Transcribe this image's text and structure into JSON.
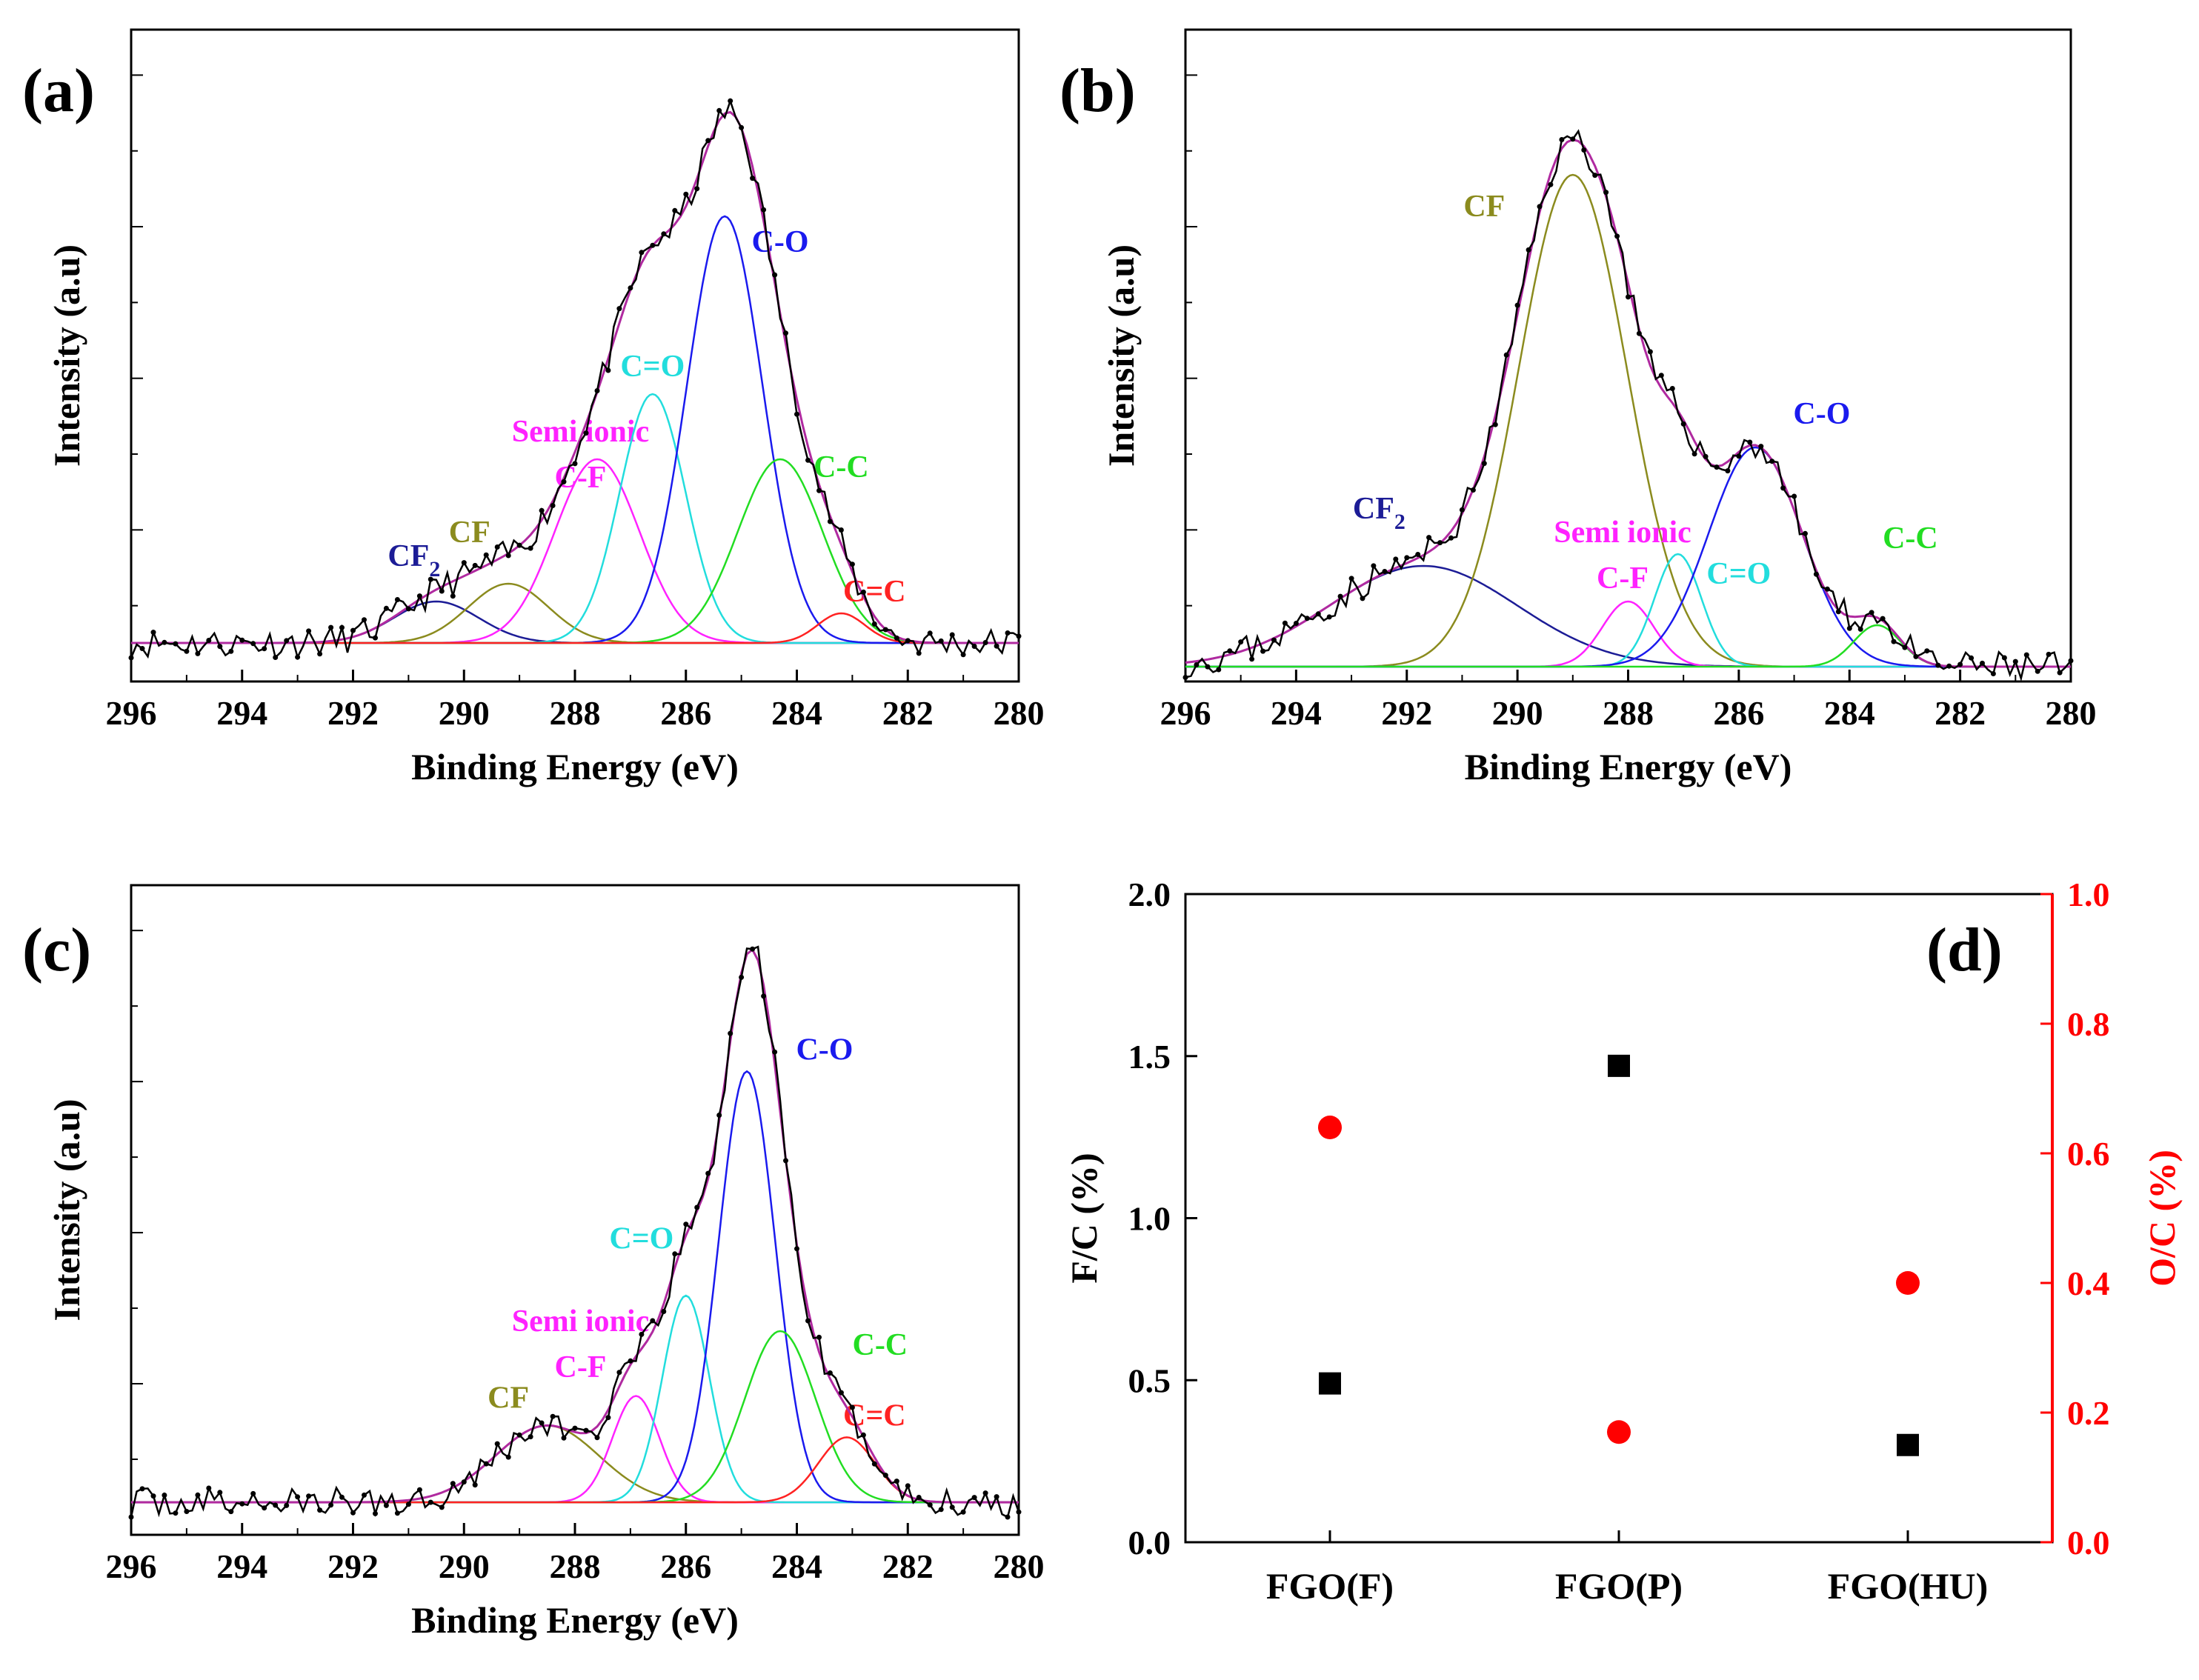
{
  "chart_data": [
    {
      "type": "line",
      "panel": "(a)",
      "xlabel": "Binding Energy (eV)",
      "ylabel": "Intensity (a.u)",
      "xlim": [
        296,
        280
      ],
      "ylim": [
        0,
        1
      ],
      "xticks": [
        296,
        294,
        292,
        290,
        288,
        286,
        284,
        282,
        280
      ],
      "baseline": 0.04,
      "noise_seed": 11,
      "peaks": [
        {
          "label": "CF2",
          "center": 290.5,
          "height": 0.07,
          "fwhm": 1.8,
          "color": "#1c1c96",
          "label_pos": [
            290.9,
            0.17
          ]
        },
        {
          "label": "CF",
          "center": 289.2,
          "height": 0.1,
          "fwhm": 1.7,
          "color": "#8b8b1e",
          "label_pos": [
            289.9,
            0.21
          ]
        },
        {
          "label": "Semi ionic C-F",
          "center": 287.6,
          "height": 0.31,
          "fwhm": 1.8,
          "color": "#ff22ff",
          "label_pos": [
            287.9,
            0.38
          ]
        },
        {
          "label": "C=O",
          "center": 286.6,
          "height": 0.42,
          "fwhm": 1.4,
          "color": "#22dddd",
          "label_pos": [
            286.6,
            0.49
          ]
        },
        {
          "label": "C-O",
          "center": 285.3,
          "height": 0.72,
          "fwhm": 1.6,
          "color": "#1a1aee",
          "label_pos": [
            284.3,
            0.7
          ]
        },
        {
          "label": "C-C",
          "center": 284.3,
          "height": 0.31,
          "fwhm": 1.8,
          "color": "#22dd22",
          "label_pos": [
            283.2,
            0.32
          ]
        },
        {
          "label": "C=C",
          "center": 283.2,
          "height": 0.05,
          "fwhm": 1.0,
          "color": "#ff2222",
          "label_pos": [
            282.6,
            0.11
          ]
        }
      ],
      "peak_labels": [
        {
          "main": "CF",
          "sub": "2"
        },
        {
          "main": "CF",
          "sub": ""
        },
        {
          "main": "Semi ionic",
          "line2": "C-F"
        },
        {
          "main": "C=O",
          "sub": ""
        },
        {
          "main": "C-O",
          "sub": ""
        },
        {
          "main": "C-C",
          "sub": ""
        },
        {
          "main": "C=C",
          "sub": ""
        }
      ]
    },
    {
      "type": "line",
      "panel": "(b)",
      "xlabel": "Binding Energy (eV)",
      "ylabel": "Intensity (a.u)",
      "xlim": [
        296,
        280
      ],
      "ylim": [
        0,
        1
      ],
      "xticks": [
        296,
        294,
        292,
        290,
        288,
        286,
        284,
        282,
        280
      ],
      "baseline": 0.0,
      "noise_seed": 23,
      "peaks": [
        {
          "label": "CF2",
          "center": 291.7,
          "height": 0.17,
          "fwhm": 4.0,
          "color": "#1c1c96",
          "label_pos": [
            292.5,
            0.25
          ]
        },
        {
          "label": "CF",
          "center": 289.0,
          "height": 0.83,
          "fwhm": 2.3,
          "color": "#8b8b1e",
          "label_pos": [
            290.6,
            0.76
          ]
        },
        {
          "label": "Semi ionic C-F",
          "center": 288.0,
          "height": 0.11,
          "fwhm": 1.1,
          "color": "#ff22ff",
          "label_pos": [
            288.1,
            0.21
          ]
        },
        {
          "label": "C=O",
          "center": 287.1,
          "height": 0.19,
          "fwhm": 1.0,
          "color": "#22dddd",
          "label_pos": [
            286.0,
            0.14
          ]
        },
        {
          "label": "C-O",
          "center": 285.7,
          "height": 0.37,
          "fwhm": 2.0,
          "color": "#1a1aee",
          "label_pos": [
            284.5,
            0.41
          ]
        },
        {
          "label": "C-C",
          "center": 283.5,
          "height": 0.07,
          "fwhm": 1.0,
          "color": "#22dd22",
          "label_pos": [
            282.9,
            0.2
          ]
        }
      ],
      "peak_labels": [
        {
          "main": "CF",
          "sub": "2"
        },
        {
          "main": "CF",
          "sub": ""
        },
        {
          "main": "Semi ionic",
          "line2": "C-F"
        },
        {
          "main": "C=O",
          "sub": ""
        },
        {
          "main": "C-O",
          "sub": ""
        },
        {
          "main": "C-C",
          "sub": ""
        }
      ]
    },
    {
      "type": "line",
      "panel": "(c)",
      "xlabel": "Binding Energy (eV)",
      "ylabel": "Intensity (a.u)",
      "xlim": [
        296,
        280
      ],
      "ylim": [
        0,
        1
      ],
      "xticks": [
        296,
        294,
        292,
        290,
        288,
        286,
        284,
        282,
        280
      ],
      "baseline": 0.03,
      "noise_seed": 37,
      "peaks": [
        {
          "label": "CF",
          "center": 288.5,
          "height": 0.13,
          "fwhm": 2.2,
          "color": "#8b8b1e",
          "label_pos": [
            289.2,
            0.19
          ]
        },
        {
          "label": "Semi ionic C-F",
          "center": 286.9,
          "height": 0.18,
          "fwhm": 1.0,
          "color": "#ff22ff",
          "label_pos": [
            287.9,
            0.32
          ]
        },
        {
          "label": "C=O",
          "center": 286.0,
          "height": 0.35,
          "fwhm": 1.0,
          "color": "#22dddd",
          "label_pos": [
            286.8,
            0.46
          ]
        },
        {
          "label": "C-O",
          "center": 284.9,
          "height": 0.73,
          "fwhm": 1.2,
          "color": "#1a1aee",
          "label_pos": [
            283.5,
            0.78
          ]
        },
        {
          "label": "C-C",
          "center": 284.3,
          "height": 0.29,
          "fwhm": 1.5,
          "color": "#22dd22",
          "label_pos": [
            282.5,
            0.28
          ]
        },
        {
          "label": "C=C",
          "center": 283.1,
          "height": 0.11,
          "fwhm": 1.2,
          "color": "#ff2222",
          "label_pos": [
            282.6,
            0.16
          ]
        }
      ],
      "peak_labels": [
        {
          "main": "CF",
          "sub": ""
        },
        {
          "main": "Semi ionic",
          "line2": "C-F"
        },
        {
          "main": "C=O",
          "sub": ""
        },
        {
          "main": "C-O",
          "sub": ""
        },
        {
          "main": "C-C",
          "sub": ""
        },
        {
          "main": "C=C",
          "sub": ""
        }
      ]
    },
    {
      "type": "scatter",
      "panel": "(d)",
      "categories": [
        "FGO(F)",
        "FGO(P)",
        "FGO(HU)"
      ],
      "series": [
        {
          "name": "F/C (%)",
          "axis": "left",
          "marker": "square",
          "color": "#000000",
          "values": [
            0.49,
            1.47,
            0.3
          ]
        },
        {
          "name": "O/C (%)",
          "axis": "right",
          "marker": "circle",
          "color": "#ff0000",
          "values": [
            0.64,
            0.17,
            0.4
          ]
        }
      ],
      "ylabel_left": "F/C (%)",
      "ylabel_right": "O/C (%)",
      "ylim_left": [
        0.0,
        2.0
      ],
      "ylim_right": [
        0.0,
        1.0
      ],
      "yticks_left": [
        "0.0",
        "0.5",
        "1.0",
        "1.5",
        "2.0"
      ],
      "yticks_right": [
        "0.0",
        "0.2",
        "0.4",
        "0.6",
        "0.8",
        "1.0"
      ],
      "right_axis_color": "#ff0000"
    }
  ]
}
